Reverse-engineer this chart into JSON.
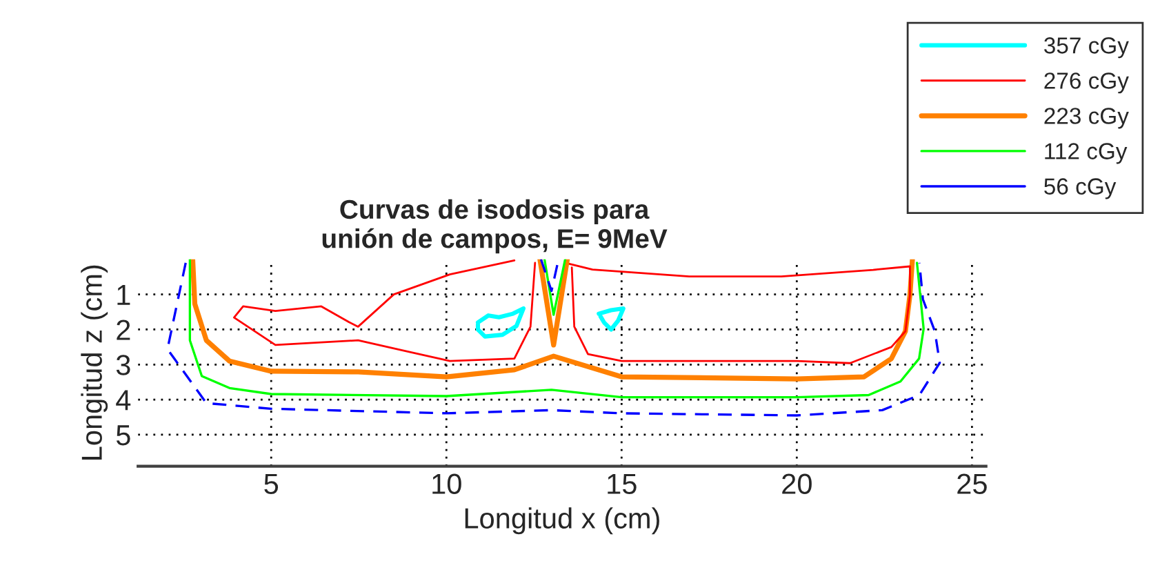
{
  "chart_data": {
    "type": "line",
    "title": "Curvas de isodosis para\nunión de campos, E= 9MeV",
    "xlabel": "Longitud x (cm)",
    "ylabel": "Longitud z (cm)",
    "xlim": [
      1.2,
      25.4
    ],
    "ylim": [
      5.9,
      0
    ],
    "xticks": [
      5,
      10,
      15,
      20,
      25
    ],
    "yticks": [
      1,
      2,
      3,
      4,
      5
    ],
    "grid": true,
    "legend": "top right",
    "marker": "none",
    "series": [
      {
        "name": "357 cGy",
        "color": "#00ffff",
        "line_style": "solid",
        "x": [
          10.9,
          11.2,
          11.5,
          11.9,
          12.2,
          12.0,
          11.6,
          11.1,
          10.9,
          10.9
        ],
        "values": [
          1.8,
          1.6,
          1.65,
          1.55,
          1.4,
          1.9,
          2.15,
          2.2,
          2.0,
          1.86
        ]
      },
      {
        "name": "276 cGy",
        "color": "#ff0000",
        "line_style": "solid",
        "x": [
          12.53,
          12.4,
          11.94,
          10.1,
          7.48,
          5.12,
          3.94,
          4.2,
          5.12,
          6.43,
          7.22,
          7.48,
          8.5,
          10.1,
          11.94
        ],
        "values": [
          0.1,
          1.92,
          2.83,
          2.9,
          2.31,
          2.44,
          1.66,
          1.34,
          1.47,
          1.34,
          1.79,
          1.92,
          1.0,
          0.43,
          0.03
        ]
      },
      {
        "name": "223 cGy",
        "color": "#ff8000",
        "line_style": "solid",
        "x": [
          2.76,
          2.82,
          3.15,
          3.81,
          5.0,
          7.48,
          10.0,
          11.94,
          13.06,
          15.0,
          20.0,
          21.92,
          22.7,
          23.1,
          23.23,
          23.3
        ],
        "values": [
          0.0,
          1.27,
          2.31,
          2.9,
          3.19,
          3.21,
          3.35,
          3.15,
          2.76,
          3.35,
          3.41,
          3.35,
          2.83,
          2.05,
          1.01,
          0.0
        ]
      },
      {
        "name": "112 cGy",
        "color": "#00ff00",
        "line_style": "solid",
        "x": [
          2.68,
          2.68,
          3.02,
          3.81,
          5.0,
          10.0,
          13.0,
          15.0,
          20.0,
          22.05,
          22.96,
          23.49,
          23.62,
          23.43
        ],
        "values": [
          0.0,
          2.31,
          3.33,
          3.67,
          3.84,
          3.9,
          3.72,
          3.93,
          3.93,
          3.87,
          3.48,
          2.83,
          1.98,
          0.1
        ]
      },
      {
        "name": "56 cGy",
        "color": "#0000ff",
        "line_style": "dashed",
        "x": [
          2.56,
          2.04,
          3.15,
          5.0,
          10.0,
          13.0,
          15.0,
          20.0,
          22.44,
          23.5,
          24.08,
          23.94,
          23.6,
          23.5
        ],
        "values": [
          0.1,
          2.56,
          4.1,
          4.26,
          4.39,
          4.3,
          4.39,
          4.45,
          4.3,
          3.87,
          2.95,
          2.05,
          1.14,
          0.1
        ]
      },
      {
        "color": "#00ffff",
        "line_style": "solid",
        "x": [
          14.35,
          14.7,
          15.05,
          14.9,
          14.7,
          14.5,
          14.4
        ],
        "values": [
          1.55,
          1.45,
          1.4,
          1.75,
          2.0,
          1.8,
          1.63
        ]
      },
      {
        "color": "#ff0000",
        "line_style": "solid",
        "x": [
          13.39,
          14.17,
          16.93,
          19.56,
          22.18,
          23.23,
          23.23,
          23.1,
          22.7,
          21.52,
          20.0,
          15.0,
          14.04,
          13.65,
          13.58
        ],
        "values": [
          0.1,
          0.29,
          0.49,
          0.49,
          0.3,
          0.2,
          1.01,
          2.05,
          2.5,
          2.96,
          2.9,
          2.9,
          2.7,
          1.92,
          0.23
        ]
      },
      {
        "color": "#ff8000",
        "line_style": "solid",
        "x": [
          12.67,
          13.06,
          13.45
        ],
        "values": [
          0.0,
          2.44,
          0.0
        ]
      },
      {
        "color": "#00ff00",
        "line_style": "solid",
        "x": [
          12.8,
          13.06,
          13.39
        ],
        "values": [
          0.0,
          1.58,
          0.0
        ]
      },
      {
        "color": "#0000ff",
        "line_style": "dashed",
        "x": [
          12.7,
          13.0,
          13.2
        ],
        "values": [
          0.0,
          0.9,
          0.0
        ]
      }
    ]
  }
}
